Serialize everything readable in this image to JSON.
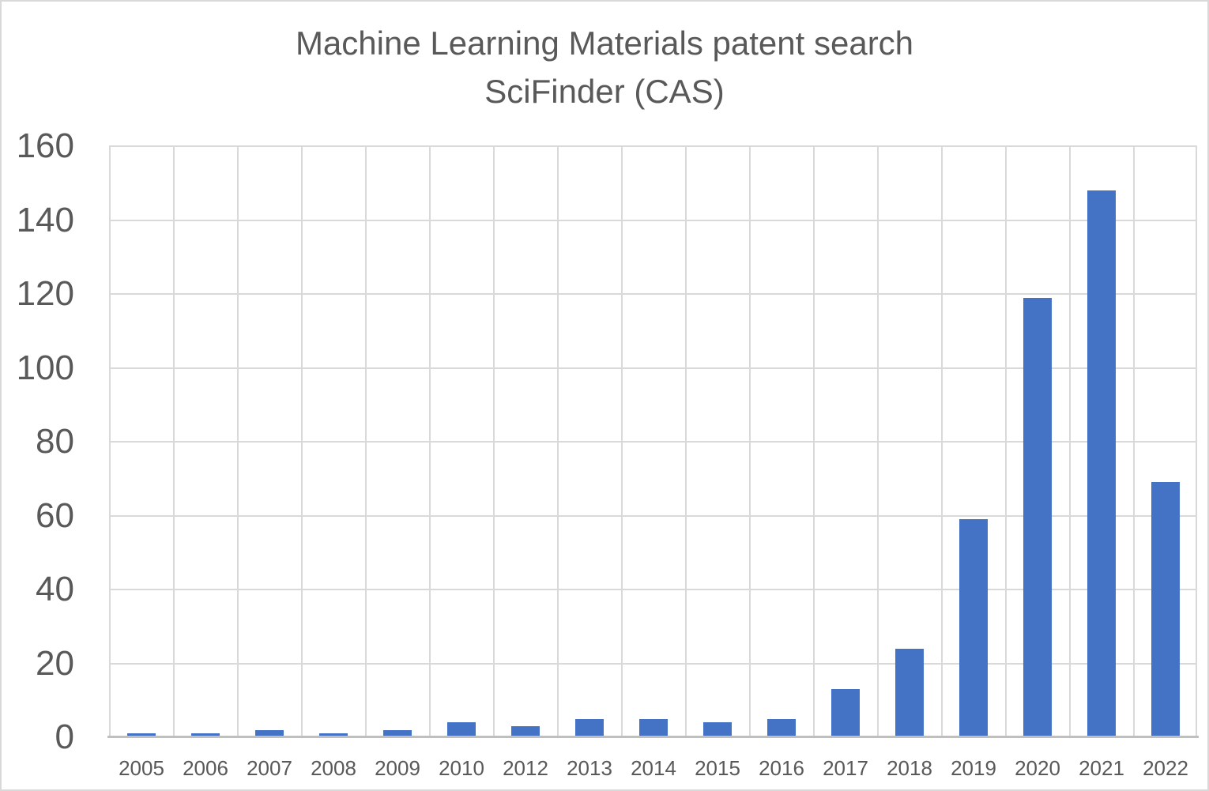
{
  "window": {
    "background_color": "#FFFFFF",
    "border_color": "#D9D9D9"
  },
  "chart_data": {
    "type": "bar",
    "title": "Machine Learning Materials patent search",
    "subtitle": "SciFinder (CAS)",
    "categories": [
      "2005",
      "2006",
      "2007",
      "2008",
      "2009",
      "2010",
      "2012",
      "2013",
      "2014",
      "2015",
      "2016",
      "2017",
      "2018",
      "2019",
      "2020",
      "2021",
      "2022"
    ],
    "values": [
      1,
      1,
      2,
      1,
      2,
      4,
      3,
      5,
      5,
      4,
      5,
      13,
      24,
      59,
      119,
      148,
      69
    ],
    "xlabel": "",
    "ylabel": "",
    "ylim": [
      0,
      160
    ],
    "ytick_step": 20,
    "yticks": [
      0,
      20,
      40,
      60,
      80,
      100,
      120,
      140,
      160
    ],
    "grid": "both",
    "legend": "none",
    "bar_color": "#4472C4",
    "gridline_color": "#D9D9D9",
    "axis_line_color": "#BFBFBF",
    "text_color": "#595959"
  }
}
